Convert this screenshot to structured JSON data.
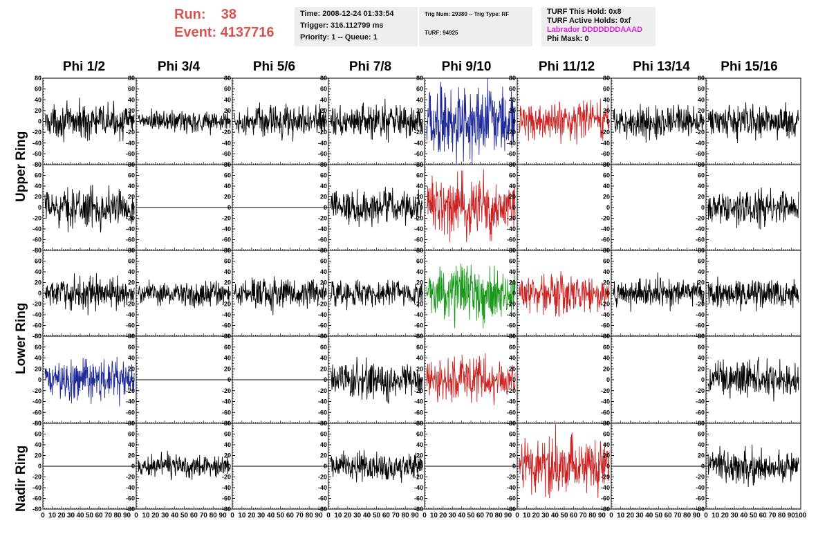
{
  "header": {
    "run_label": "Run:",
    "run_value": "38",
    "event_label": "Event:",
    "event_value": "4137716"
  },
  "info_panels": {
    "time_line": "Time: 2008-12-24 01:33:54",
    "trigger_line": "Trigger: 316.112799 ms",
    "priority_line": "Priority: 1 -- Queue: 1",
    "trig_line": "Trig Num: 29380 -- Trig Type: RF",
    "turf_line": "TURF: 94925",
    "turf_hold_line": "TURF This Hold: 0x8",
    "turf_active_line": "TURF Active Holds: 0xf",
    "labrador_line": "Labrador DDDDDDDAAAD",
    "phi_mask_line": "Phi Mask: 0"
  },
  "columns": [
    "Phi 1/2",
    "Phi 3/4",
    "Phi 5/6",
    "Phi 7/8",
    "Phi 9/10",
    "Phi 11/12",
    "Phi 13/14",
    "Phi 15/16"
  ],
  "ring_labels": [
    "Upper Ring",
    "Lower Ring",
    "Nadir Ring"
  ],
  "colors": {
    "black": "#000000",
    "blue": "#1f2a9a",
    "red": "#cc2222",
    "green": "#1a9a1a",
    "header_red": "#d9534f",
    "magenta": "#e020e0",
    "panel_bg": "#eeeeee"
  },
  "chart_data": {
    "type": "line",
    "ylim": [
      -80,
      80
    ],
    "xlim": [
      0,
      100
    ],
    "yticks": [
      80,
      60,
      40,
      20,
      0,
      -20,
      -40,
      -60,
      -80
    ],
    "ytick_labels": [
      "80",
      "60",
      "40",
      "20",
      "0",
      "-20",
      "-40",
      "-60",
      "-80"
    ],
    "xtick_labels": [
      "0",
      "10",
      "20",
      "30",
      "40",
      "50",
      "60",
      "70",
      "80",
      "90",
      "100"
    ],
    "rows": [
      {
        "name": "upper-a",
        "cells": [
          {
            "state": "noise",
            "color": "black",
            "amp": 14
          },
          {
            "state": "noise",
            "color": "black",
            "amp": 10
          },
          {
            "state": "noise",
            "color": "black",
            "amp": 13
          },
          {
            "state": "noise",
            "color": "black",
            "amp": 14
          },
          {
            "state": "noise",
            "color": "blue",
            "amp": 30
          },
          {
            "state": "noise",
            "color": "red",
            "amp": 17
          },
          {
            "state": "noise",
            "color": "black",
            "amp": 13
          },
          {
            "state": "noise",
            "color": "black",
            "amp": 15
          }
        ]
      },
      {
        "name": "upper-b",
        "cells": [
          {
            "state": "noise",
            "color": "black",
            "amp": 16
          },
          {
            "state": "flat",
            "color": "black",
            "amp": 0
          },
          {
            "state": "flat",
            "color": "black",
            "amp": 0
          },
          {
            "state": "noise",
            "color": "black",
            "amp": 15
          },
          {
            "state": "noise",
            "color": "red",
            "amp": 25
          },
          {
            "state": "empty",
            "color": "black",
            "amp": 0
          },
          {
            "state": "empty",
            "color": "black",
            "amp": 0
          },
          {
            "state": "noise",
            "color": "black",
            "amp": 14
          }
        ]
      },
      {
        "name": "lower-a",
        "cells": [
          {
            "state": "noise",
            "color": "black",
            "amp": 13
          },
          {
            "state": "noise",
            "color": "black",
            "amp": 11
          },
          {
            "state": "noise",
            "color": "black",
            "amp": 13
          },
          {
            "state": "noise",
            "color": "black",
            "amp": 12
          },
          {
            "state": "noise",
            "color": "green",
            "amp": 22
          },
          {
            "state": "noise",
            "color": "red",
            "amp": 17
          },
          {
            "state": "noise",
            "color": "black",
            "amp": 12
          },
          {
            "state": "noise",
            "color": "black",
            "amp": 13
          }
        ]
      },
      {
        "name": "lower-b",
        "cells": [
          {
            "state": "noise",
            "color": "blue",
            "amp": 17
          },
          {
            "state": "flat",
            "color": "black",
            "amp": 0
          },
          {
            "state": "flat",
            "color": "black",
            "amp": 0
          },
          {
            "state": "noise",
            "color": "black",
            "amp": 15
          },
          {
            "state": "noise",
            "color": "red",
            "amp": 18
          },
          {
            "state": "empty",
            "color": "black",
            "amp": 0
          },
          {
            "state": "empty",
            "color": "black",
            "amp": 0
          },
          {
            "state": "noise",
            "color": "black",
            "amp": 15
          }
        ]
      },
      {
        "name": "nadir",
        "cells": [
          {
            "state": "flat",
            "color": "black",
            "amp": 0
          },
          {
            "state": "noise",
            "color": "black",
            "amp": 10
          },
          {
            "state": "flat",
            "color": "black",
            "amp": 0
          },
          {
            "state": "noise",
            "color": "black",
            "amp": 12
          },
          {
            "state": "flat",
            "color": "black",
            "amp": 0
          },
          {
            "state": "noise",
            "color": "red",
            "amp": 25
          },
          {
            "state": "flat",
            "color": "black",
            "amp": 0
          },
          {
            "state": "noise",
            "color": "black",
            "amp": 14
          }
        ]
      }
    ]
  }
}
